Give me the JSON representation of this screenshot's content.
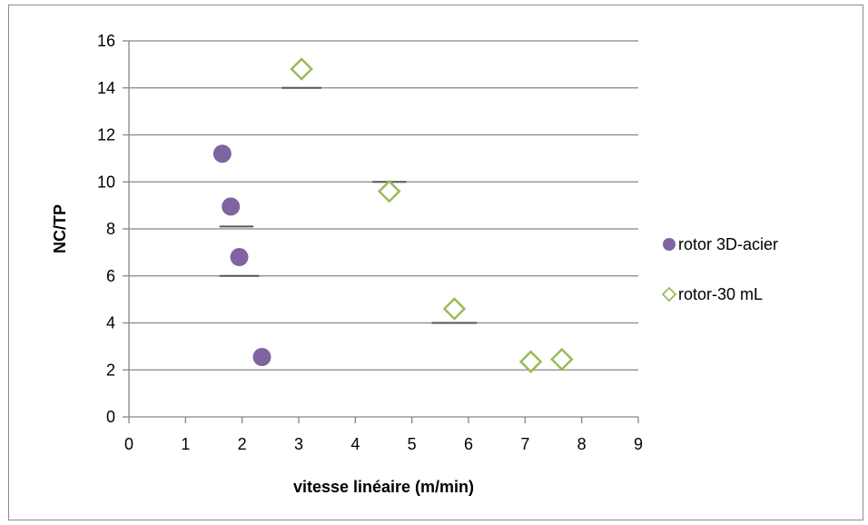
{
  "chart_data": {
    "type": "scatter",
    "xlabel": "vitesse linéaire (m/min)",
    "ylabel": "NC/TP",
    "xlim": [
      0,
      9
    ],
    "ylim": [
      0,
      16
    ],
    "x_ticks": [
      "0",
      "1",
      "2",
      "3",
      "4",
      "5",
      "6",
      "7",
      "8",
      "9"
    ],
    "y_ticks": [
      "0",
      "2",
      "4",
      "6",
      "8",
      "10",
      "12",
      "14",
      "16"
    ],
    "grid": "horizontal",
    "legend_position": "right",
    "series": [
      {
        "name": "rotor 3D-acier",
        "marker": "circle",
        "color": "#8064a2",
        "points": [
          [
            1.65,
            11.2
          ],
          [
            1.8,
            8.95
          ],
          [
            1.95,
            6.8
          ],
          [
            2.35,
            2.55
          ]
        ]
      },
      {
        "name": "rotor-30 mL",
        "marker": "diamond",
        "color": "#9bbb59",
        "points": [
          [
            3.05,
            14.8
          ],
          [
            4.6,
            9.6
          ],
          [
            5.75,
            4.6
          ],
          [
            7.1,
            2.35
          ],
          [
            7.65,
            2.45
          ]
        ]
      }
    ],
    "annotations": [
      {
        "type": "mean-line",
        "y": 14.0,
        "x_from": 2.7,
        "x_to": 3.4
      },
      {
        "type": "mean-line",
        "y": 10.0,
        "x_from": 4.3,
        "x_to": 4.9
      },
      {
        "type": "mean-line",
        "y": 4.0,
        "x_from": 5.35,
        "x_to": 6.15
      },
      {
        "type": "mean-line",
        "y": 6.0,
        "x_from": 1.6,
        "x_to": 2.3
      },
      {
        "type": "mean-line",
        "y": 8.1,
        "x_from": 1.6,
        "x_to": 2.2
      }
    ]
  }
}
